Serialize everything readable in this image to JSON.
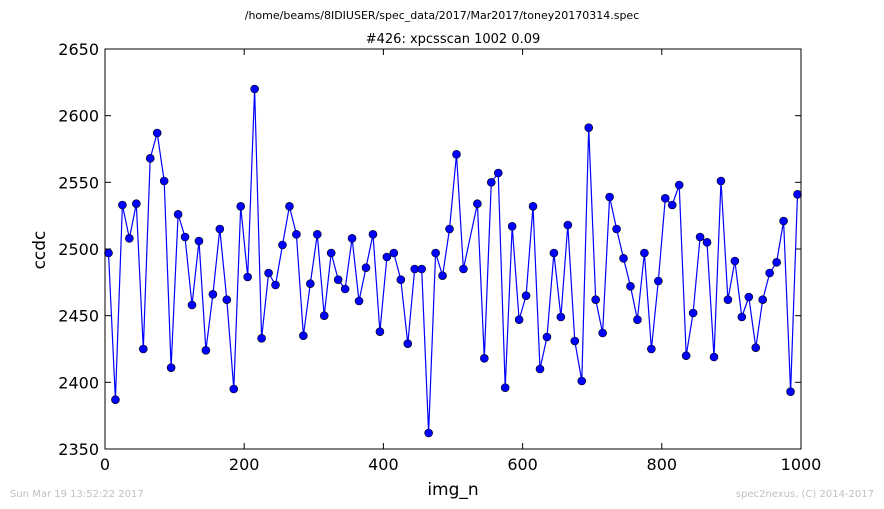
{
  "chart_data": {
    "type": "line",
    "suptitle": "/home/beams/8IDIUSER/spec_data/2017/Mar2017/toney20170314.spec",
    "title": "#426: xpcsscan 1002 0.09",
    "xlabel": "img_n",
    "ylabel": "ccdc",
    "xlim": [
      0,
      1000
    ],
    "ylim": [
      2350,
      2650
    ],
    "xticks": [
      0,
      200,
      400,
      600,
      800,
      1000
    ],
    "yticks": [
      2350,
      2400,
      2450,
      2500,
      2550,
      2600,
      2650
    ],
    "grid": false,
    "line_color": "#0000ff",
    "marker_color": "#0000ff",
    "series": [
      {
        "x": [
          5,
          15,
          25,
          35,
          45,
          55,
          65,
          75,
          85,
          95,
          105,
          115,
          125,
          135,
          145,
          155,
          165,
          175,
          185,
          195,
          205,
          215,
          225,
          235,
          245,
          255,
          265,
          275,
          285,
          295,
          305,
          315,
          325,
          335,
          345,
          355,
          365,
          375,
          385,
          395,
          405,
          415,
          425,
          435,
          445,
          455,
          465,
          475,
          485,
          495,
          505,
          515,
          535,
          545,
          555,
          565,
          575,
          585,
          595,
          605,
          615,
          625,
          635,
          645,
          655,
          665,
          675,
          685,
          695,
          705,
          715,
          725,
          735,
          745,
          755,
          765,
          775,
          785,
          795,
          805,
          815,
          825,
          835,
          845,
          855,
          865,
          875,
          885,
          895,
          905,
          915,
          925,
          935,
          945,
          955,
          965,
          975,
          985,
          995
        ],
        "y": [
          2497,
          2387,
          2533,
          2508,
          2534,
          2425,
          2568,
          2587,
          2551,
          2411,
          2526,
          2509,
          2458,
          2506,
          2424,
          2466,
          2515,
          2462,
          2395,
          2532,
          2479,
          2620,
          2433,
          2482,
          2473,
          2503,
          2532,
          2511,
          2435,
          2474,
          2511,
          2450,
          2497,
          2477,
          2470,
          2508,
          2461,
          2486,
          2511,
          2438,
          2494,
          2497,
          2477,
          2429,
          2485,
          2485,
          2362,
          2497,
          2480,
          2515,
          2571,
          2485,
          2534,
          2418,
          2550,
          2557,
          2396,
          2517,
          2447,
          2465,
          2532,
          2410,
          2434,
          2497,
          2449,
          2518,
          2431,
          2401,
          2591,
          2462,
          2437,
          2539,
          2515,
          2493,
          2472,
          2447,
          2497,
          2425,
          2476,
          2538,
          2533,
          2548,
          2420,
          2452,
          2509,
          2505,
          2419,
          2551,
          2462,
          2491,
          2449,
          2464,
          2426,
          2462,
          2482,
          2490,
          2521,
          2393,
          2541
        ]
      }
    ]
  },
  "footer": {
    "left": "Sun Mar 19 13:52:22 2017",
    "right": "spec2nexus, (C) 2014-2017"
  }
}
